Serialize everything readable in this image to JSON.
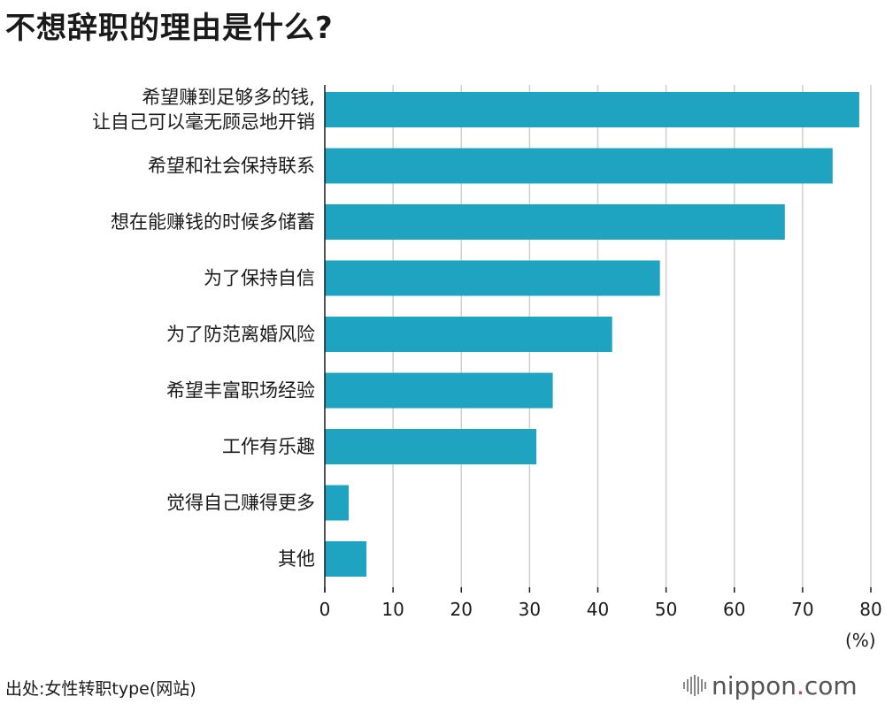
{
  "chart_data": {
    "type": "bar",
    "orientation": "horizontal",
    "title": "不想辞职的理由是什么?",
    "categories": [
      [
        "希望赚到足够多的钱,",
        "让自己可以毫无顾忌地开销"
      ],
      [
        "希望和社会保持联系"
      ],
      [
        "想在能赚钱的时候多储蓄"
      ],
      [
        "为了保持自信"
      ],
      [
        "为了防范离婚风险"
      ],
      [
        "希望丰富职场经验"
      ],
      [
        "工作有乐趣"
      ],
      [
        "觉得自己赚得更多"
      ],
      [
        "其他"
      ]
    ],
    "values": [
      78.3,
      74.4,
      67.4,
      49.1,
      42.1,
      33.4,
      31.0,
      3.5,
      6.1
    ],
    "xlim": [
      0,
      80
    ],
    "xticks": [
      0,
      10,
      20,
      30,
      40,
      50,
      60,
      70,
      80
    ],
    "unit": "(%)",
    "bar_color": "#1ea3c0",
    "grid": true
  },
  "source": "出处:女性转职type(网站)",
  "logo": {
    "name": "nippon",
    "dot": ".",
    "suffix": "com"
  }
}
